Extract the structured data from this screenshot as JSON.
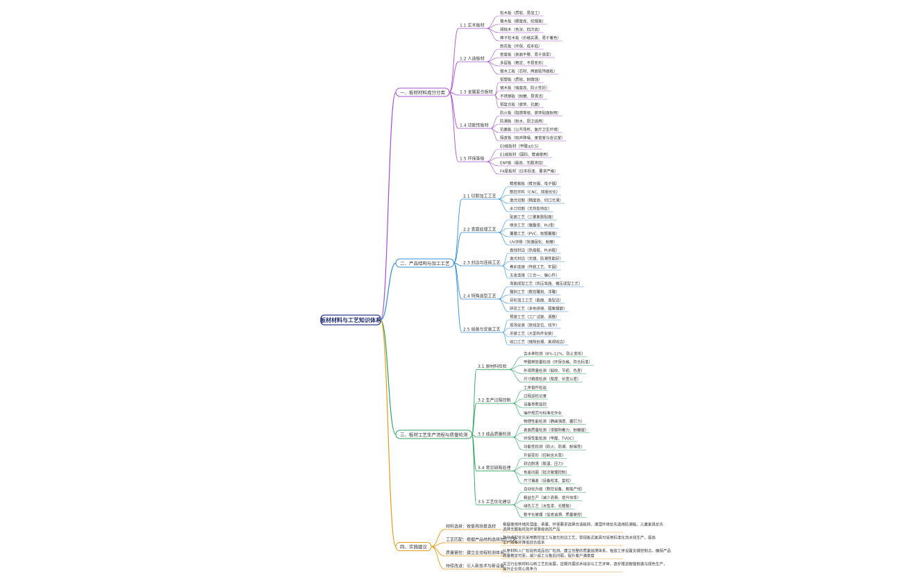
{
  "root": "板材材料与工艺知识体系",
  "branches": [
    {
      "label": "一、板材材料成分分类",
      "subs": [
        {
          "label": "1.1 实木板材",
          "children": [
            "松木板（质软、易加工）",
            "橡木板（硬度高、纹理美）",
            "胡桃木（色深、档次高）",
            "樟子松木板（价格实惠、易于着色）"
          ]
        },
        {
          "label": "1.2 人造板材",
          "children": [
            "刨花板（环保、成本低）",
            "密度板（表面平整、易于造型）",
            "多层板（稳定、不易变形）",
            "细木工板（芯材、两面贴饰面板）"
          ]
        },
        {
          "label": "1.3 金属复合板材",
          "children": [
            "铝塑板（质轻、耐腐蚀）",
            "钢木板（强度高、防火性好）",
            "不锈钢板（耐磨、易清洁）",
            "铜复合板（装饰、抗菌）"
          ]
        },
        {
          "label": "1.4 功能性板材",
          "children": [
            "防火板（阻燃等级、装饰贴面耐用）",
            "防潮板（耐水、厨卫适用）",
            "抗菌板（公共场所、医疗卫生环境）",
            "隔音板（吸声降噪、录音室与会议室）"
          ]
        },
        {
          "label": "1.5 环保等级",
          "children": [
            "E0级板材（甲醛≤0.5）",
            "E1级板材（国标、普遍使用）",
            "ENF级（最高、无醛添加）",
            "F4星板材（日本标准、要求严格）"
          ]
        }
      ]
    },
    {
      "label": "二、产品结构与加工工艺",
      "subs": [
        {
          "label": "2.1 切割加工工艺",
          "children": [
            "精密裁板（推台锯、电子锯）",
            "数控开料（CNC、排版优化）",
            "激光切割（精度高、切口光滑）",
            "水刀切割（无热影响区）"
          ]
        },
        {
          "label": "2.2 表面处理工艺",
          "children": [
            "贴面工艺（三聚氰胺贴面）",
            "喷涂工艺（聚酯漆、PU漆）",
            "覆膜工艺（PVC、吸塑覆膜）",
            "UV涂装（快速固化、耐磨）"
          ]
        },
        {
          "label": "2.3 封边与连接工艺",
          "children": [
            "直线封边（热熔胶、PUR胶）",
            "激光封边（无缝、防潮性能好）",
            "榫卯连接（传统工艺、牢固）",
            "五金连接（三合一、偏心件）"
          ]
        },
        {
          "label": "2.4 特殊造型工艺",
          "children": [
            "弯曲成型工艺（热压弯曲、模压成型工艺）",
            "雕刻工艺（数控雕刻、浮雕）",
            "异形加工工艺（曲面、造型边）",
            "拼花工艺（多色拼接、图案镶嵌）"
          ]
        },
        {
          "label": "2.5 组装与安装工艺",
          "children": [
            "预装工艺（工厂试装、调整）",
            "现场安装（放线定位、找平）",
            "吊装工艺（大型构件安装）",
            "收口工艺（缝隙处理、美观收边）"
          ]
        }
      ]
    },
    {
      "label": "三、板材工艺生产流程与质量检测",
      "subs": [
        {
          "label": "3.1 原材料检验",
          "children": [
            "含水率检测（8%-12%、防止变形）",
            "甲醛释放量检测（环保合格、符合标准）",
            "外观质量检测（裂纹、节疤、色差）",
            "尺寸精度检测（厚度、长宽公差）"
          ]
        },
        {
          "label": "3.2 生产过程控制",
          "children": [
            "工序首件检验",
            "过程巡检记录",
            "设备参数监控",
            "操作规范与标准化作业"
          ]
        },
        {
          "label": "3.3 成品质量检测",
          "children": [
            "物理性能检测（静曲强度、握钉力）",
            "表面质量检测（漆膜附着力、耐磨度）",
            "环保性能检测（甲醛、TVOC）",
            "功能性检测（防火、防潮、耐候性）"
          ]
        },
        {
          "label": "3.4 常见缺陷处理",
          "children": [
            "开裂变形（控制含水率）",
            "封边脱落（胶温、压力）",
            "色差问题（批次管理控制）",
            "尺寸偏差（设备校准、复检）"
          ]
        },
        {
          "label": "3.5 工艺优化建议",
          "children": [
            "自动化升级（数控设备、智能产线）",
            "精益生产（减少浪费、提升效率）",
            "绿色工艺（水性漆、无醛胶）",
            "数字化管理（信息追溯、质量管控）"
          ]
        }
      ]
    },
    {
      "label": "四、实施建议",
      "subs": [
        {
          "label": "材料选择：按使用场景选材",
          "children": [
            "根据使用环境的湿度、承重、环保要求选择合适板材，潮湿环境优先选用防潮板，儿童家具优先",
            "选择无醛板材及环保等级高的产品"
          ]
        },
        {
          "label": "工艺匹配：根据产品结构选择加工工艺",
          "children": [
            "复杂造型优先采用数控加工与激光封边工艺，常规板式家具可采用标准化流水线生产，提高",
            "生产效率并降低综合成本"
          ]
        },
        {
          "label": "质量管控：建立全流程检测体系",
          "children": [
            "从原材料入厂检验到成品出厂检测，建立完整的质量追溯体系，每道工序设置关键控制点，确保产品",
            "质量稳定可靠，减少返工与售后问题，提升客户满意度"
          ]
        },
        {
          "label": "持续改进：引入新技术与新设备",
          "children": [
            "关注行业新材料与新工艺的发展，定期开展技术培训与工艺评审，逐步推进智能制造与绿色生产，",
            "提升企业核心竞争力"
          ]
        }
      ]
    }
  ]
}
